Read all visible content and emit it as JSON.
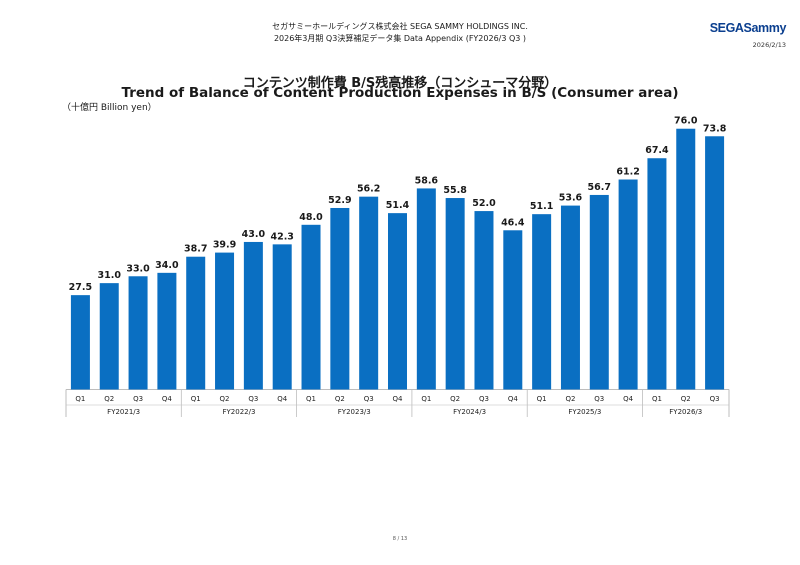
{
  "header": {
    "company_line": "セガサミーホールディングス株式会社  SEGA SAMMY HOLDINGS INC.",
    "report_line": "2026年3月期 Q3決算補足データ集  Data Appendix (FY2026/3 Q3 )",
    "logo_text": "SEGASammy",
    "date": "2026/2/13"
  },
  "page_number": "8 / 13",
  "colors": {
    "bar": "#0a6fc2",
    "axis": "#bdbdbd",
    "logo": "#0b3f8f"
  },
  "chart_data": {
    "type": "bar",
    "title": "コンテンツ制作費  B/S残高推移（コンシューマ分野）",
    "subtitle": "Trend of Balance of Content Production Expenses in B/S (Consumer area)",
    "ylabel": "（十億円  Billion yen）",
    "xlabel": "",
    "ylim": [
      0,
      80
    ],
    "grid": false,
    "categories": [
      "Q1",
      "Q2",
      "Q3",
      "Q4",
      "Q1",
      "Q2",
      "Q3",
      "Q4",
      "Q1",
      "Q2",
      "Q3",
      "Q4",
      "Q1",
      "Q2",
      "Q3",
      "Q4",
      "Q1",
      "Q2",
      "Q3",
      "Q4",
      "Q1",
      "Q2",
      "Q3"
    ],
    "groups": [
      {
        "name": "FY2021/3",
        "count": 4
      },
      {
        "name": "FY2022/3",
        "count": 4
      },
      {
        "name": "FY2023/3",
        "count": 4
      },
      {
        "name": "FY2024/3",
        "count": 4
      },
      {
        "name": "FY2025/3",
        "count": 4
      },
      {
        "name": "FY2026/3",
        "count": 3
      }
    ],
    "values": [
      27.5,
      31.0,
      33.0,
      34.0,
      38.7,
      39.9,
      43.0,
      42.3,
      48.0,
      52.9,
      56.2,
      51.4,
      58.6,
      55.8,
      52.0,
      46.4,
      51.1,
      53.6,
      56.7,
      61.2,
      67.4,
      76.0,
      73.8
    ],
    "value_labels": [
      "27.5",
      "31.0",
      "33.0",
      "34.0",
      "38.7",
      "39.9",
      "43.0",
      "42.3",
      "48.0",
      "52.9",
      "56.2",
      "51.4",
      "58.6",
      "55.8",
      "52.0",
      "46.4",
      "51.1",
      "53.6",
      "56.7",
      "61.2",
      "67.4",
      "76.0",
      "73.8"
    ]
  }
}
